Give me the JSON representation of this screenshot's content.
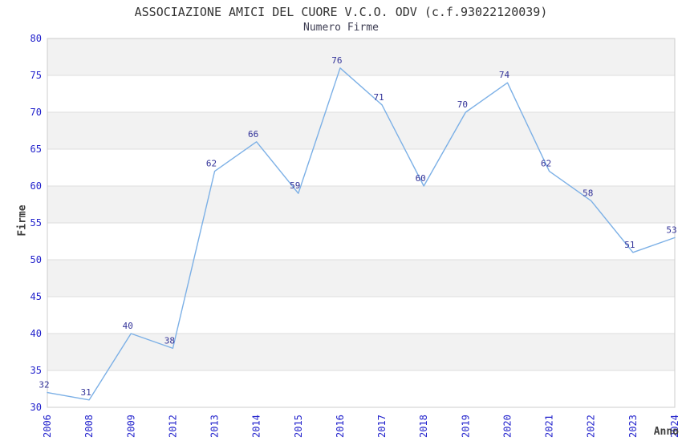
{
  "chart_data": {
    "type": "line",
    "title": "ASSOCIAZIONE AMICI DEL CUORE V.C.O. ODV (c.f.93022120039)",
    "subtitle": "Numero Firme",
    "xlabel": "Anno",
    "ylabel": "Firme",
    "categories": [
      "2006",
      "2008",
      "2009",
      "2012",
      "2013",
      "2014",
      "2015",
      "2016",
      "2017",
      "2018",
      "2019",
      "2020",
      "2021",
      "2022",
      "2023",
      "2024"
    ],
    "values": [
      32,
      31,
      40,
      38,
      62,
      66,
      59,
      76,
      71,
      60,
      70,
      74,
      62,
      58,
      51,
      53
    ],
    "ylim": [
      30,
      80
    ],
    "ytick_step": 5,
    "yticks": [
      30,
      35,
      40,
      45,
      50,
      55,
      60,
      65,
      70,
      75,
      80
    ],
    "grid": "horizontal-alternating-bands",
    "legend": "none",
    "colors": {
      "line": "#7CB0E6",
      "data_label": "#333399",
      "axis_tick_label": "#2222CC",
      "title": "#333333",
      "subtitle": "#3D3D52",
      "axis_title": "#404040",
      "band_fill": "#F2F2F2",
      "plot_border": "#CCCCCC",
      "gridline": "#DDDDDD",
      "background": "#FFFFFF"
    }
  }
}
